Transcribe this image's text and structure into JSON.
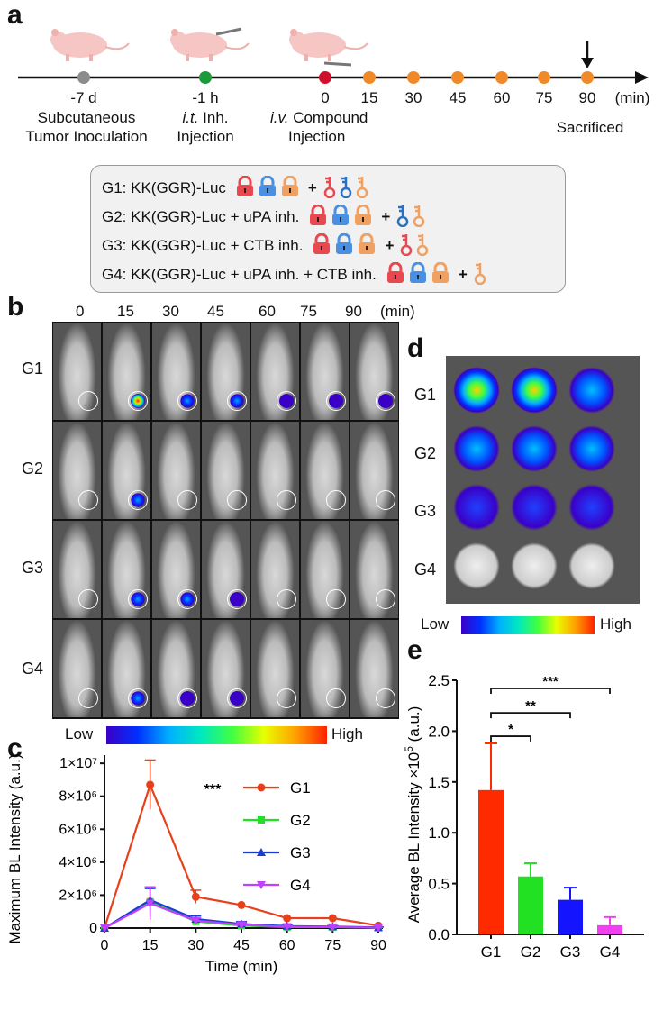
{
  "panels": {
    "a": "a",
    "b": "b",
    "c": "c",
    "d": "d",
    "e": "e"
  },
  "timeline": {
    "ticks": [
      "-7 d",
      "-1 h",
      "0",
      "15",
      "30",
      "45",
      "60",
      "75",
      "90"
    ],
    "unit": "(min)",
    "label1_line1": "Subcutaneous",
    "label1_line2": "Tumor Inoculation",
    "label2_italic": "i.t.",
    "label2_rest": " Inh.",
    "label2_line2": "Injection",
    "label3_italic": "i.v.",
    "label3_rest": " Compound",
    "label3_line2": "Injection",
    "label4": "Sacrificed",
    "colors": {
      "gray": "#8c8c8c",
      "green": "#1a9a3a",
      "red": "#d0102a",
      "orange": "#f08a28"
    }
  },
  "groups_legend": [
    {
      "text": "G1: KK(GGR)-Luc",
      "plus": "+"
    },
    {
      "text": "G2: KK(GGR)-Luc + uPA inh.",
      "plus": "+"
    },
    {
      "text": "G3: KK(GGR)-Luc + CTB inh.",
      "plus": "+"
    },
    {
      "text": "G4: KK(GGR)-Luc + uPA inh. + CTB inh.",
      "plus": "+"
    }
  ],
  "imaging": {
    "times": [
      "0",
      "15",
      "30",
      "45",
      "60",
      "75",
      "90"
    ],
    "unit": "(min)",
    "rows": [
      "G1",
      "G2",
      "G3",
      "G4"
    ],
    "colorbar_low": "Low",
    "colorbar_high": "High"
  },
  "exvivo": {
    "rows": [
      "G1",
      "G2",
      "G3",
      "G4"
    ],
    "colorbar_low": "Low",
    "colorbar_high": "High"
  },
  "chart_data": [
    {
      "type": "line",
      "title": "",
      "xlabel": "Time (min)",
      "ylabel": "Maximum BL Intensity (a.u.)",
      "x": [
        0,
        15,
        30,
        45,
        60,
        75,
        90
      ],
      "xticks": [
        "0",
        "15",
        "30",
        "45",
        "60",
        "75",
        "90"
      ],
      "yticks": [
        "0",
        "2×10⁶",
        "4×10⁶",
        "6×10⁶",
        "8×10⁶",
        "1×10⁷"
      ],
      "ylim": [
        0,
        10500000
      ],
      "annotation": "***",
      "series": [
        {
          "name": "G1",
          "color": "#e8401c",
          "marker": "circle",
          "values": [
            0,
            8700000,
            1900000,
            1400000,
            600000,
            600000,
            150000
          ],
          "err": [
            0,
            1500000,
            400000,
            0,
            0,
            0,
            0
          ]
        },
        {
          "name": "G2",
          "color": "#22e022",
          "marker": "square",
          "values": [
            0,
            1600000,
            400000,
            150000,
            60000,
            60000,
            20000
          ],
          "err": [
            0,
            900000,
            150000,
            100000,
            40000,
            40000,
            20000
          ]
        },
        {
          "name": "G3",
          "color": "#1a3fd0",
          "marker": "triangle-up",
          "values": [
            0,
            1700000,
            550000,
            250000,
            120000,
            90000,
            40000
          ],
          "err": [
            0,
            700000,
            200000,
            150000,
            80000,
            60000,
            30000
          ]
        },
        {
          "name": "G4",
          "color": "#c040ff",
          "marker": "triangle-down",
          "values": [
            0,
            1500000,
            450000,
            200000,
            80000,
            60000,
            20000
          ],
          "err": [
            0,
            1000000,
            200000,
            120000,
            60000,
            40000,
            20000
          ]
        }
      ]
    },
    {
      "type": "bar",
      "title": "",
      "xlabel": "",
      "ylabel_main": "Average BL Intensity ×10",
      "ylabel_exp": "5",
      "ylabel_unit": " (a.u.)",
      "categories": [
        "G1",
        "G2",
        "G3",
        "G4"
      ],
      "values": [
        1.42,
        0.57,
        0.34,
        0.09
      ],
      "err": [
        0.46,
        0.13,
        0.12,
        0.08
      ],
      "colors": [
        "#ff2a00",
        "#22e022",
        "#1414ff",
        "#f040f0"
      ],
      "yticks": [
        "0.0",
        "0.5",
        "1.0",
        "1.5",
        "2.0",
        "2.5"
      ],
      "ylim": [
        0,
        2.5
      ],
      "significance": [
        {
          "from": "G1",
          "to": "G2",
          "label": "*"
        },
        {
          "from": "G1",
          "to": "G3",
          "label": "**"
        },
        {
          "from": "G1",
          "to": "G4",
          "label": "***"
        }
      ]
    }
  ]
}
